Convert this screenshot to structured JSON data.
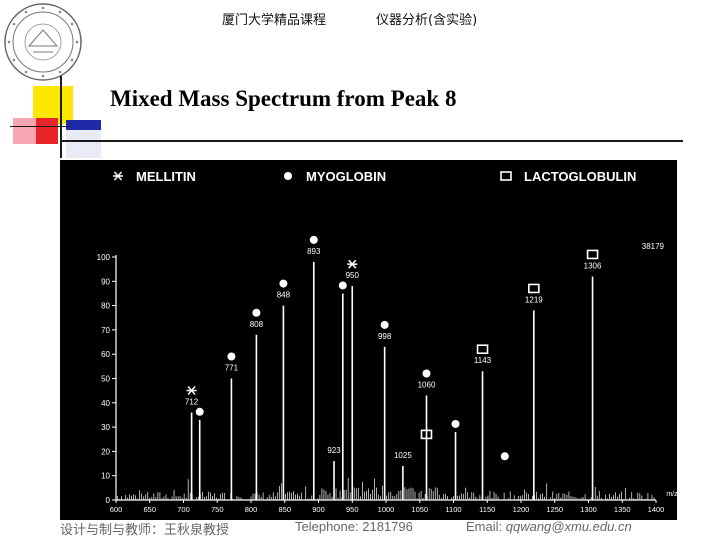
{
  "header": {
    "course": "厦门大学精品课程",
    "subject": "仪器分析(含实验)"
  },
  "title": "Mixed Mass Spectrum from Peak 8",
  "legend": [
    {
      "marker": "asterisk",
      "label": "MELLITIN"
    },
    {
      "marker": "dot",
      "label": "MYOGLOBIN"
    },
    {
      "marker": "square",
      "label": "LACTOGLOBULIN"
    }
  ],
  "chart_data": {
    "type": "bar",
    "title": "",
    "xlabel": "m/z",
    "ylabel": "",
    "xlim": [
      600,
      1400
    ],
    "ylim": [
      0,
      100
    ],
    "x_ticks": [
      "600",
      "650",
      "700",
      "750",
      "800",
      "850",
      "900",
      "950",
      "1000",
      "1050",
      "1100",
      "1150",
      "1200",
      "1250",
      "1300",
      "1350",
      "1400"
    ],
    "y_ticks": [
      "0",
      "10",
      "20",
      "30",
      "40",
      "50",
      "60",
      "70",
      "80",
      "90",
      "100"
    ],
    "corner_label": "38179",
    "labeled_peaks": [
      {
        "x": 712,
        "y": 36,
        "label": "712",
        "marker": "asterisk"
      },
      {
        "x": 724,
        "y": 33,
        "label": "",
        "marker": "dot"
      },
      {
        "x": 771,
        "y": 50,
        "label": "771",
        "marker": "dot"
      },
      {
        "x": 808,
        "y": 68,
        "label": "808",
        "marker": "dot"
      },
      {
        "x": 848,
        "y": 80,
        "label": "848",
        "marker": "dot"
      },
      {
        "x": 893,
        "y": 98,
        "label": "893",
        "marker": "dot"
      },
      {
        "x": 923,
        "y": 16,
        "label": "923",
        "marker": ""
      },
      {
        "x": 936,
        "y": 85,
        "label": "",
        "marker": "dot"
      },
      {
        "x": 950,
        "y": 88,
        "label": "950",
        "marker": "asterisk"
      },
      {
        "x": 998,
        "y": 63,
        "label": "998",
        "marker": "dot"
      },
      {
        "x": 1025,
        "y": 14,
        "label": "1025",
        "marker": ""
      },
      {
        "x": 1060,
        "y": 43,
        "label": "1060",
        "marker": "dot"
      },
      {
        "x": 1103,
        "y": 28,
        "label": "",
        "marker": "dot"
      },
      {
        "x": 1143,
        "y": 53,
        "label": "1143",
        "marker": "square"
      },
      {
        "x": 1219,
        "y": 78,
        "label": "1219",
        "marker": "square"
      },
      {
        "x": 1306,
        "y": 92,
        "label": "1306",
        "marker": "square"
      }
    ],
    "annotation_only_markers": [
      {
        "x": 1060,
        "marker": "square",
        "y_level": 27
      },
      {
        "x": 1176,
        "marker": "dot",
        "y_level": 18
      }
    ]
  },
  "footer": {
    "author": "设计与制与教师：王秋泉教授",
    "phone_label": "Telephone:",
    "phone": "2181796",
    "email_label": "Email:",
    "email": "qqwang@xmu.edu.cn"
  },
  "colors": {
    "deco_yellow": "#ffe800",
    "deco_red": "#e8262a",
    "deco_blue": "#1f2aa8",
    "deco_pink": "#f6a6b0"
  }
}
